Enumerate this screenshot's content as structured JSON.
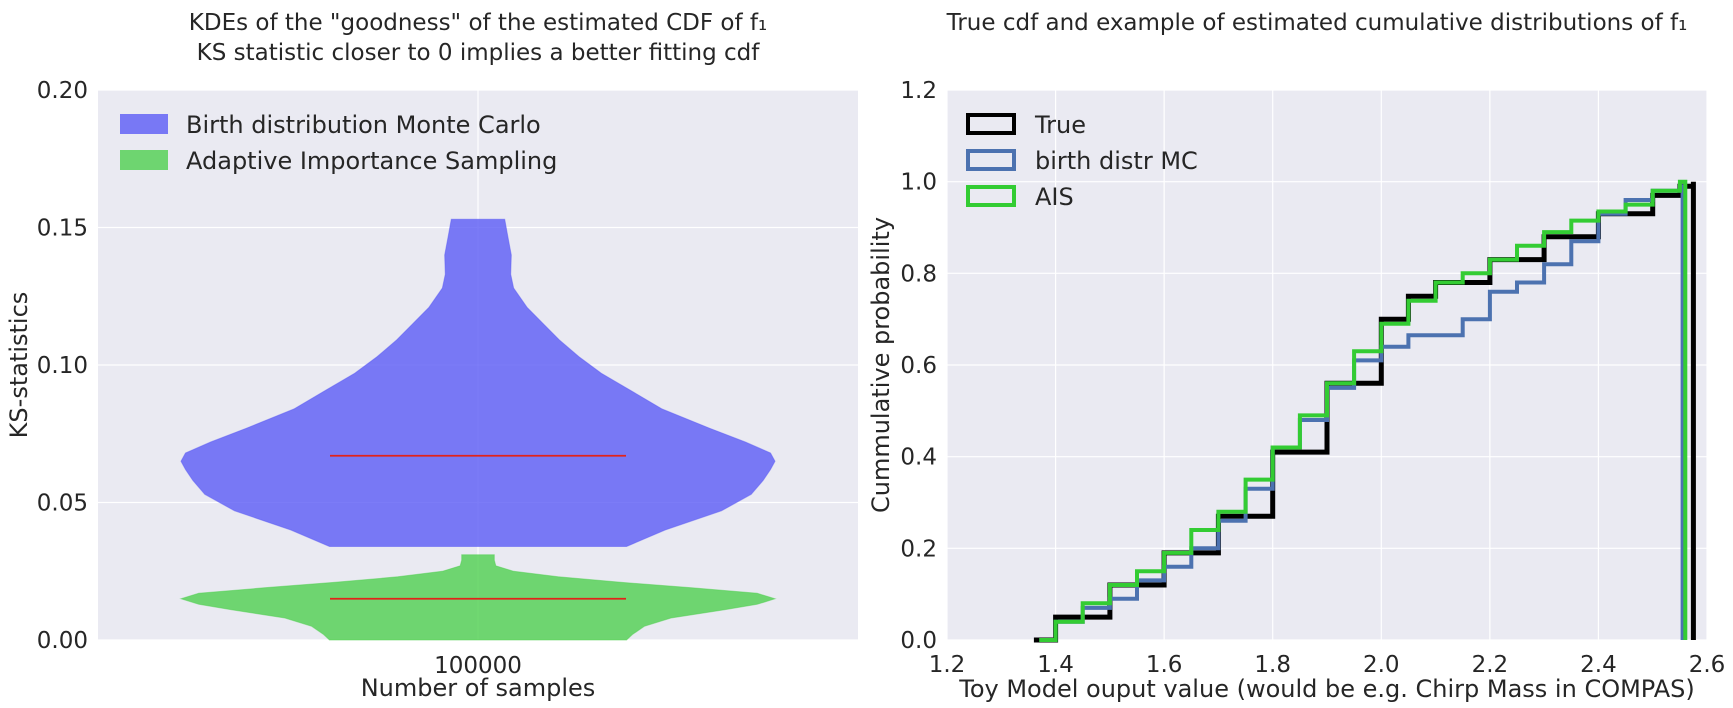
{
  "chart_data": [
    {
      "type": "violin",
      "title": "KDEs of the \"goodness\" of the estimated CDF of f₁",
      "subtitle": "KS statistic closer to 0 implies a better fitting cdf",
      "xlabel": "Number of samples",
      "ylabel": "KS-statistics",
      "categories": [
        "100000"
      ],
      "ylim": [
        0,
        0.2
      ],
      "yticks": [
        "0.00",
        "0.05",
        "0.10",
        "0.15",
        "0.20"
      ],
      "grid": true,
      "legend_position": "top-left",
      "series": [
        {
          "name": "Birth distribution Monte Carlo",
          "color": "#5b5bf5",
          "min": 0.034,
          "max": 0.153,
          "median": 0.067,
          "density": [
            [
              0.034,
              0.5
            ],
            [
              0.04,
              0.63
            ],
            [
              0.047,
              0.82
            ],
            [
              0.053,
              0.92
            ],
            [
              0.058,
              0.96
            ],
            [
              0.062,
              0.985
            ],
            [
              0.065,
              1.0
            ],
            [
              0.068,
              0.985
            ],
            [
              0.072,
              0.9
            ],
            [
              0.077,
              0.78
            ],
            [
              0.084,
              0.62
            ],
            [
              0.091,
              0.51
            ],
            [
              0.097,
              0.415
            ],
            [
              0.103,
              0.34
            ],
            [
              0.109,
              0.275
            ],
            [
              0.115,
              0.22
            ],
            [
              0.121,
              0.165
            ],
            [
              0.128,
              0.12
            ],
            [
              0.133,
              0.11
            ],
            [
              0.14,
              0.112
            ],
            [
              0.147,
              0.1
            ],
            [
              0.153,
              0.09
            ]
          ]
        },
        {
          "name": "Adaptive Importance Sampling",
          "color": "#4fcf4f",
          "min": 0.0,
          "max": 0.031,
          "median": 0.015,
          "density": [
            [
              0.0,
              0.5
            ],
            [
              0.002,
              0.52
            ],
            [
              0.005,
              0.56
            ],
            [
              0.008,
              0.65
            ],
            [
              0.011,
              0.83
            ],
            [
              0.013,
              0.94
            ],
            [
              0.015,
              1.0
            ],
            [
              0.017,
              0.94
            ],
            [
              0.019,
              0.72
            ],
            [
              0.021,
              0.48
            ],
            [
              0.023,
              0.27
            ],
            [
              0.025,
              0.12
            ],
            [
              0.027,
              0.06
            ],
            [
              0.029,
              0.055
            ],
            [
              0.031,
              0.055
            ]
          ]
        }
      ]
    },
    {
      "type": "line",
      "title": "True cdf and example of estimated cumulative distributions of f₁",
      "xlabel": "Toy Model ouput value (would be e.g. Chirp Mass in COMPAS)",
      "ylabel": "Cummulative probability",
      "xlim": [
        1.2,
        2.6
      ],
      "ylim": [
        0,
        1.2
      ],
      "xticks": [
        "1.2",
        "1.4",
        "1.6",
        "1.8",
        "2.0",
        "2.2",
        "2.4",
        "2.6"
      ],
      "yticks": [
        "0.0",
        "0.2",
        "0.4",
        "0.6",
        "0.8",
        "1.0",
        "1.2"
      ],
      "grid": true,
      "legend_position": "top-left",
      "series": [
        {
          "name": "True",
          "color": "#000000",
          "x": [
            1.36,
            1.4,
            1.5,
            1.6,
            1.7,
            1.8,
            1.9,
            2.0,
            2.05,
            2.1,
            2.2,
            2.3,
            2.4,
            2.5,
            2.55,
            2.575,
            2.575
          ],
          "y": [
            0.0,
            0.05,
            0.12,
            0.19,
            0.27,
            0.41,
            0.56,
            0.7,
            0.75,
            0.78,
            0.83,
            0.88,
            0.93,
            0.97,
            0.99,
            1.0,
            0.0
          ]
        },
        {
          "name": "birth distr MC",
          "color": "#4c72b0",
          "x": [
            1.37,
            1.4,
            1.45,
            1.5,
            1.55,
            1.6,
            1.65,
            1.7,
            1.75,
            1.8,
            1.85,
            1.9,
            1.95,
            2.0,
            2.05,
            2.1,
            2.15,
            2.2,
            2.25,
            2.3,
            2.35,
            2.4,
            2.45,
            2.5,
            2.55,
            2.555,
            2.555
          ],
          "y": [
            0.0,
            0.04,
            0.07,
            0.09,
            0.13,
            0.16,
            0.2,
            0.26,
            0.33,
            0.42,
            0.48,
            0.55,
            0.61,
            0.64,
            0.665,
            0.665,
            0.7,
            0.76,
            0.78,
            0.82,
            0.87,
            0.93,
            0.96,
            0.98,
            0.99,
            0.99,
            0.0
          ]
        },
        {
          "name": "AIS",
          "color": "#33cc33",
          "x": [
            1.37,
            1.4,
            1.45,
            1.5,
            1.55,
            1.6,
            1.65,
            1.7,
            1.75,
            1.8,
            1.85,
            1.9,
            1.95,
            2.0,
            2.05,
            2.1,
            2.15,
            2.2,
            2.25,
            2.3,
            2.35,
            2.4,
            2.45,
            2.5,
            2.55,
            2.56,
            2.56
          ],
          "y": [
            0.0,
            0.04,
            0.08,
            0.12,
            0.15,
            0.19,
            0.24,
            0.28,
            0.35,
            0.42,
            0.49,
            0.56,
            0.63,
            0.69,
            0.74,
            0.78,
            0.8,
            0.83,
            0.86,
            0.89,
            0.915,
            0.935,
            0.95,
            0.98,
            1.0,
            1.0,
            0.0
          ]
        }
      ]
    }
  ]
}
